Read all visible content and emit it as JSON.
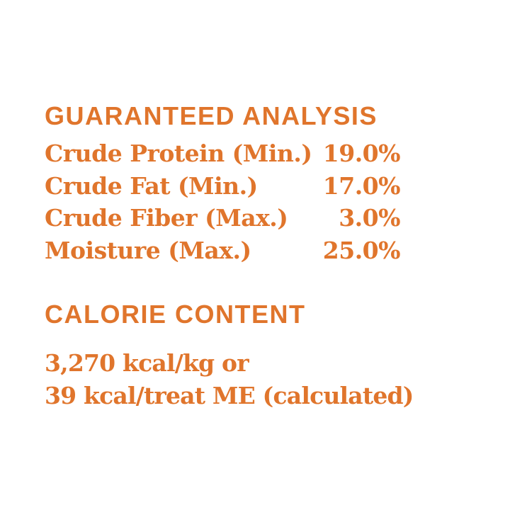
{
  "colors": {
    "accent": "#E0752C",
    "background": "#FFFFFF"
  },
  "guaranteed_analysis": {
    "title": "GUARANTEED ANALYSIS",
    "rows": [
      {
        "label": "Crude Protein (Min.)",
        "value": "19.0%"
      },
      {
        "label": "Crude Fat (Min.)",
        "value": "17.0%"
      },
      {
        "label": "Crude Fiber (Max.)",
        "value": "3.0%"
      },
      {
        "label": "Moisture (Max.)",
        "value": "25.0%"
      }
    ]
  },
  "calorie_content": {
    "title": "CALORIE CONTENT",
    "lines": [
      "3,270 kcal/kg or",
      "39 kcal/treat ME (calculated)"
    ]
  }
}
